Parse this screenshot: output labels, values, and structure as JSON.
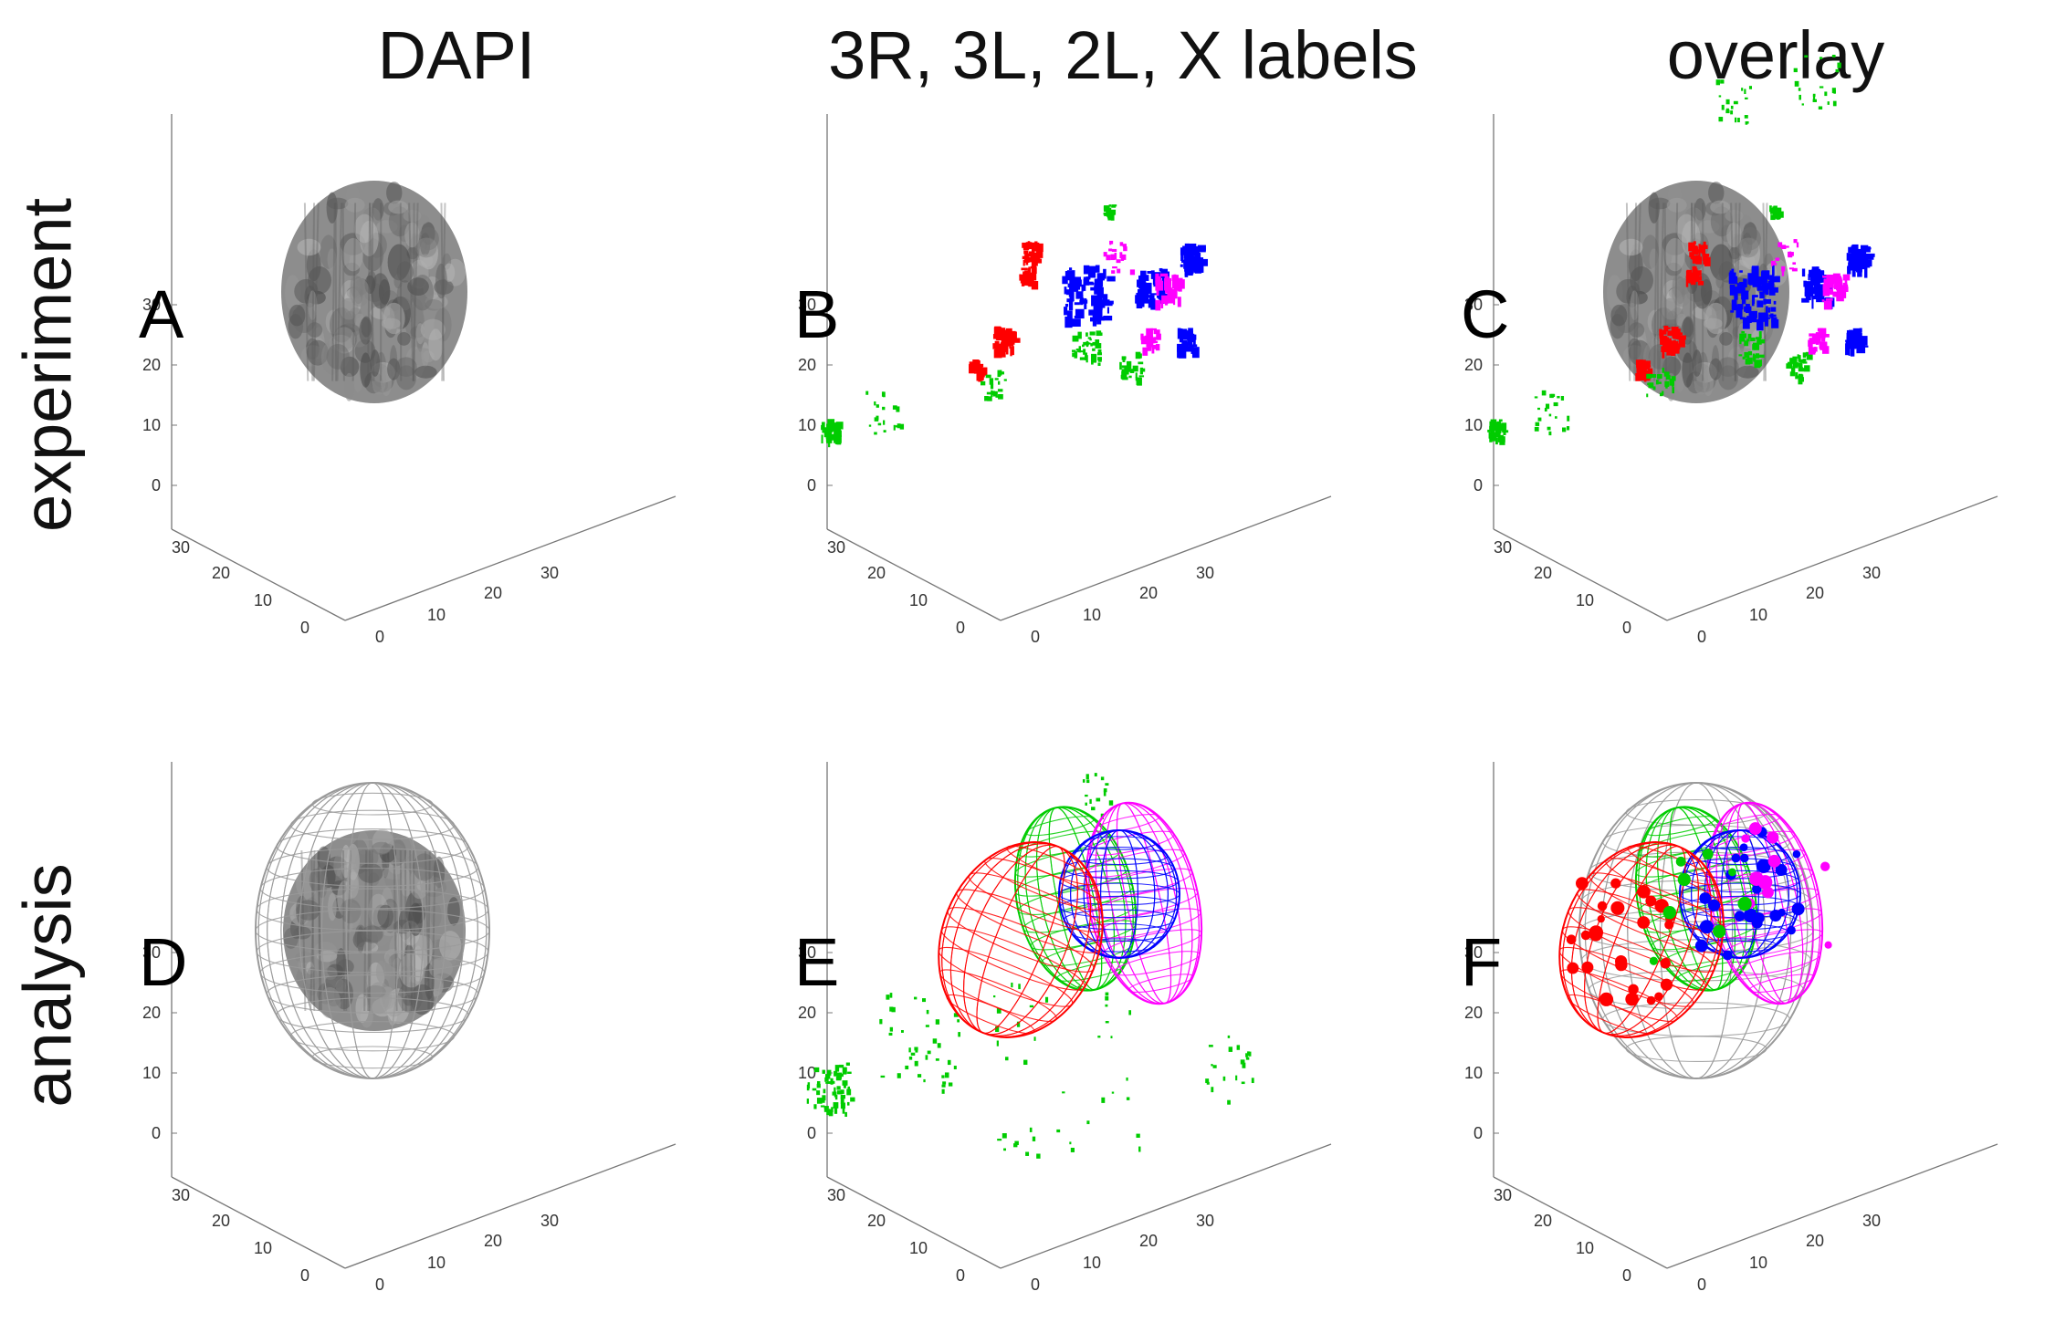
{
  "column_titles": [
    "DAPI",
    "3R, 3L, 2L, X labels",
    "overlay"
  ],
  "row_titles": [
    "experiment",
    "analysis"
  ],
  "panels": [
    {
      "letter": "A",
      "row": 0,
      "col": 0
    },
    {
      "letter": "B",
      "row": 0,
      "col": 1
    },
    {
      "letter": "C",
      "row": 0,
      "col": 2
    },
    {
      "letter": "D",
      "row": 1,
      "col": 0
    },
    {
      "letter": "E",
      "row": 1,
      "col": 1
    },
    {
      "letter": "F",
      "row": 1,
      "col": 2
    }
  ],
  "axis_ticks": {
    "z": [
      "0",
      "10",
      "20",
      "30"
    ],
    "y": [
      "0",
      "10",
      "20",
      "30"
    ],
    "x": [
      "0",
      "10",
      "20",
      "30"
    ]
  },
  "colors": {
    "dapi": "#8a8a8a",
    "label_3R": "#ff0000",
    "label_3L": "#00cc00",
    "label_2L": "#0000ff",
    "label_X": "#ff00ff",
    "mesh": "#9a9a9a"
  }
}
